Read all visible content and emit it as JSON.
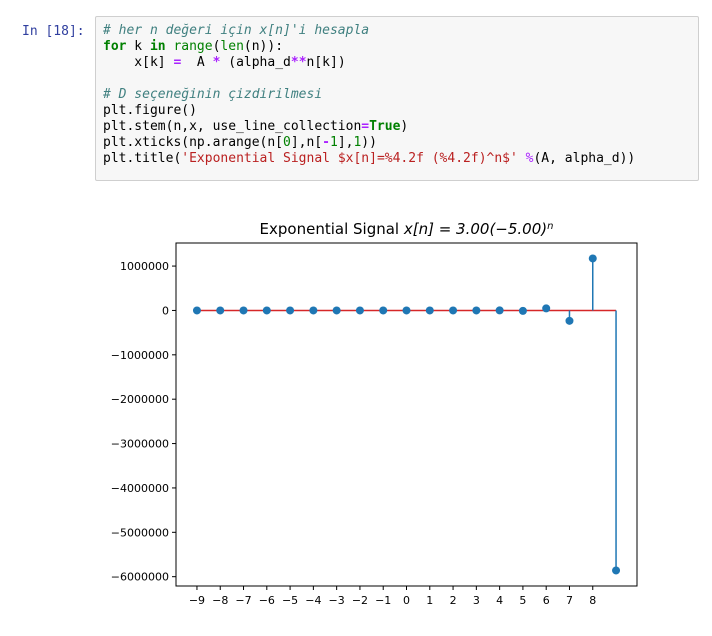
{
  "cell": {
    "prompt": "In [18]:",
    "lines": [
      [
        {
          "t": "# her n değeri için x[n]'i hesapla",
          "c": "comment"
        }
      ],
      [
        {
          "t": "for",
          "c": "keyword"
        },
        {
          "t": " k ",
          "c": "plain"
        },
        {
          "t": "in",
          "c": "keyword"
        },
        {
          "t": " ",
          "c": "plain"
        },
        {
          "t": "range",
          "c": "builtin"
        },
        {
          "t": "(",
          "c": "plain"
        },
        {
          "t": "len",
          "c": "builtin"
        },
        {
          "t": "(n)):",
          "c": "plain"
        }
      ],
      [
        {
          "t": "    x[k] ",
          "c": "plain"
        },
        {
          "t": "=",
          "c": "op"
        },
        {
          "t": "  A ",
          "c": "plain"
        },
        {
          "t": "*",
          "c": "op"
        },
        {
          "t": " (alpha_d",
          "c": "plain"
        },
        {
          "t": "**",
          "c": "op"
        },
        {
          "t": "n[k])",
          "c": "plain"
        }
      ],
      [
        {
          "t": "",
          "c": "plain"
        }
      ],
      [
        {
          "t": "# D seçeneğinin çizdirilmesi",
          "c": "comment"
        }
      ],
      [
        {
          "t": "plt.figure()",
          "c": "plain"
        }
      ],
      [
        {
          "t": "plt.stem(n,x, use_line_collection",
          "c": "plain"
        },
        {
          "t": "=",
          "c": "op"
        },
        {
          "t": "True",
          "c": "const"
        },
        {
          "t": ")",
          "c": "plain"
        }
      ],
      [
        {
          "t": "plt.xticks(np.arange(n[",
          "c": "plain"
        },
        {
          "t": "0",
          "c": "number"
        },
        {
          "t": "],n[",
          "c": "plain"
        },
        {
          "t": "-",
          "c": "op"
        },
        {
          "t": "1",
          "c": "number"
        },
        {
          "t": "],",
          "c": "plain"
        },
        {
          "t": "1",
          "c": "number"
        },
        {
          "t": "))",
          "c": "plain"
        }
      ],
      [
        {
          "t": "plt.title(",
          "c": "plain"
        },
        {
          "t": "'Exponential Signal $x[n]=%4.2f (%4.2f)^n$'",
          "c": "string"
        },
        {
          "t": " ",
          "c": "plain"
        },
        {
          "t": "%",
          "c": "op-plain"
        },
        {
          "t": "(A, alpha_d))",
          "c": "plain"
        }
      ]
    ]
  },
  "chart_data": {
    "type": "stem",
    "title": "Exponential Signal x[n] = 3.00(−5.00)^n",
    "title_prefix": "Exponential Signal ",
    "title_math": "x[n] = 3.00(−5.00)",
    "title_sup": "n",
    "x": [
      -9,
      -8,
      -7,
      -6,
      -5,
      -4,
      -3,
      -2,
      -1,
      0,
      1,
      2,
      3,
      4,
      5,
      6,
      7,
      8,
      9
    ],
    "values": [
      -1.5e-06,
      7.7e-06,
      -3.84e-05,
      0.000192,
      -0.00096,
      0.0048,
      -0.024,
      0.12,
      -0.6,
      3,
      -15,
      75,
      -375,
      1875,
      -9375,
      46875,
      -234375,
      1171875,
      -5859375
    ],
    "xticks": [
      -9,
      -8,
      -7,
      -6,
      -5,
      -4,
      -3,
      -2,
      -1,
      0,
      1,
      2,
      3,
      4,
      5,
      6,
      7,
      8
    ],
    "xtick_labels": [
      "−9",
      "−8",
      "−7",
      "−6",
      "−5",
      "−4",
      "−3",
      "−2",
      "−1",
      "0",
      "1",
      "2",
      "3",
      "4",
      "5",
      "6",
      "7",
      "8"
    ],
    "yticks": [
      1000000,
      0,
      -1000000,
      -2000000,
      -3000000,
      -4000000,
      -5000000,
      -6000000
    ],
    "ytick_labels": [
      "1000000",
      "0",
      "−1000000",
      "−2000000",
      "−3000000",
      "−4000000",
      "−5000000",
      "−6000000"
    ],
    "xlim": [
      -9.9,
      9.9
    ],
    "ylim": [
      -6210000,
      1520000
    ],
    "colors": {
      "stem": "#1f77b4",
      "marker": "#1f77b4",
      "baseline": "#d62728"
    }
  }
}
